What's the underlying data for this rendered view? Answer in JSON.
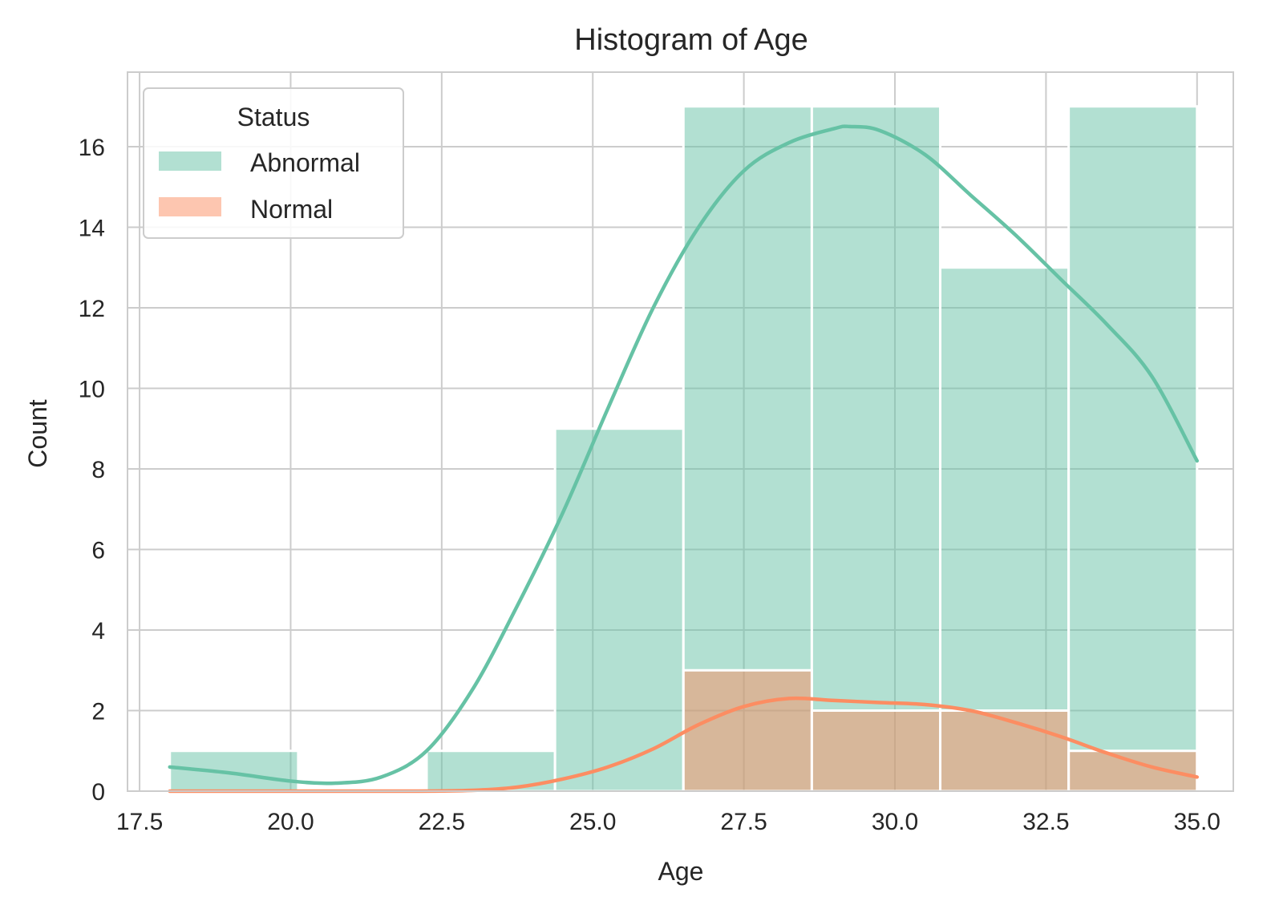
{
  "chart_data": {
    "type": "bar",
    "title": "Histogram of Age",
    "xlabel": "Age",
    "ylabel": "Count",
    "xlim": [
      17.3,
      35.6
    ],
    "ylim": [
      0,
      17.85
    ],
    "x_ticks": [
      17.5,
      20.0,
      22.5,
      25.0,
      27.5,
      30.0,
      32.5,
      35.0
    ],
    "x_tick_labels": [
      "17.5",
      "20.0",
      "22.5",
      "25.0",
      "27.5",
      "30.0",
      "32.5",
      "35.0"
    ],
    "y_ticks": [
      0,
      2,
      4,
      6,
      8,
      10,
      12,
      14,
      16
    ],
    "y_tick_labels": [
      "0",
      "2",
      "4",
      "6",
      "8",
      "10",
      "12",
      "14",
      "16"
    ],
    "grid": true,
    "legend": {
      "title": "Status",
      "placement": "top-left"
    },
    "bin_edges": [
      18.0,
      20.125,
      22.25,
      24.375,
      26.5,
      28.625,
      30.75,
      32.875,
      35.0
    ],
    "series": [
      {
        "name": "Abnormal",
        "color": "#66c2a5",
        "counts": [
          1,
          0,
          1,
          9,
          17,
          17,
          13,
          17
        ],
        "kde_x": [
          18.0,
          19.0,
          20.0,
          20.75,
          21.5,
          22.25,
          23.0,
          23.75,
          24.5,
          25.25,
          26.0,
          26.75,
          27.5,
          28.25,
          29.0,
          29.25,
          29.75,
          30.5,
          31.25,
          32.0,
          32.75,
          33.5,
          34.25,
          35.0
        ],
        "kde_y": [
          0.6,
          0.45,
          0.25,
          0.2,
          0.35,
          1.0,
          2.5,
          4.6,
          6.9,
          9.5,
          12.0,
          14.0,
          15.4,
          16.1,
          16.45,
          16.5,
          16.4,
          15.8,
          14.8,
          13.8,
          12.7,
          11.6,
          10.3,
          8.2
        ]
      },
      {
        "name": "Normal",
        "color": "#fc8d62",
        "counts": [
          0,
          0,
          0,
          0,
          3,
          2,
          2,
          1
        ],
        "kde_x": [
          18.0,
          20.0,
          22.0,
          23.0,
          23.75,
          24.5,
          25.25,
          26.0,
          26.75,
          27.5,
          28.25,
          29.0,
          29.75,
          30.5,
          31.25,
          32.0,
          32.75,
          33.5,
          34.25,
          35.0
        ],
        "kde_y": [
          0.0,
          0.0,
          0.0,
          0.02,
          0.1,
          0.3,
          0.6,
          1.05,
          1.65,
          2.1,
          2.3,
          2.25,
          2.2,
          2.15,
          2.0,
          1.7,
          1.35,
          0.95,
          0.6,
          0.35
        ]
      }
    ]
  }
}
